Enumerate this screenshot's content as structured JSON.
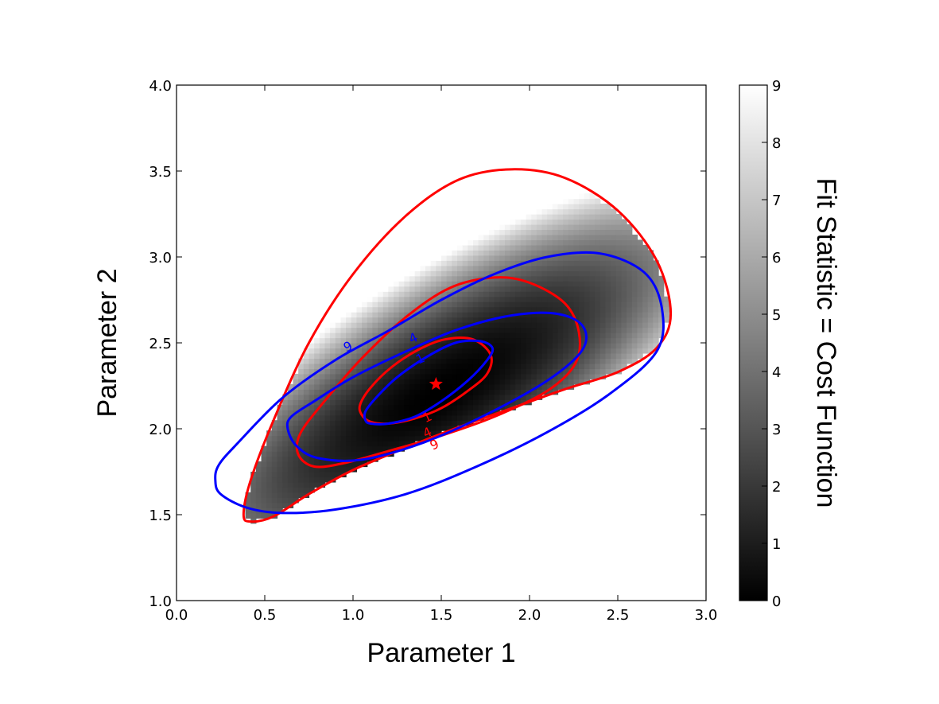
{
  "chart_data": {
    "type": "heatmap",
    "xlabel": "Parameter 1",
    "ylabel": "Parameter 2",
    "xlim": [
      0.0,
      3.0
    ],
    "ylim": [
      1.0,
      4.0
    ],
    "xticks": [
      "0.0",
      "0.5",
      "1.0",
      "1.5",
      "2.0",
      "2.5",
      "3.0"
    ],
    "yticks": [
      "1.0",
      "1.5",
      "2.0",
      "2.5",
      "3.0",
      "3.5",
      "4.0"
    ],
    "colorbar": {
      "label": "Fit Statistic = Cost Function",
      "range": [
        0,
        9
      ],
      "ticks": [
        "0",
        "1",
        "2",
        "3",
        "4",
        "5",
        "6",
        "7",
        "8",
        "9"
      ],
      "colormap": "gray"
    },
    "heatmap": {
      "minimum": {
        "x": 1.5,
        "y": 2.22
      },
      "max_value": 9
    },
    "best_fit": {
      "x": 1.47,
      "y": 2.26,
      "marker": "star",
      "color": "#ff0000"
    },
    "contour_sets": [
      {
        "color": "#ff0000",
        "levels": [
          {
            "label": "1",
            "points": [
              [
                1.05,
                2.08
              ],
              [
                1.1,
                2.04
              ],
              [
                1.2,
                2.03
              ],
              [
                1.35,
                2.06
              ],
              [
                1.5,
                2.12
              ],
              [
                1.65,
                2.22
              ],
              [
                1.76,
                2.32
              ],
              [
                1.78,
                2.43
              ],
              [
                1.68,
                2.52
              ],
              [
                1.52,
                2.52
              ],
              [
                1.37,
                2.46
              ],
              [
                1.22,
                2.36
              ],
              [
                1.1,
                2.24
              ],
              [
                1.04,
                2.14
              ]
            ]
          },
          {
            "label": "4",
            "points": [
              [
                0.69,
                1.85
              ],
              [
                0.78,
                1.78
              ],
              [
                0.95,
                1.8
              ],
              [
                1.2,
                1.87
              ],
              [
                1.5,
                1.96
              ],
              [
                1.8,
                2.07
              ],
              [
                2.1,
                2.22
              ],
              [
                2.26,
                2.38
              ],
              [
                2.28,
                2.56
              ],
              [
                2.2,
                2.73
              ],
              [
                2.0,
                2.85
              ],
              [
                1.8,
                2.88
              ],
              [
                1.55,
                2.82
              ],
              [
                1.3,
                2.65
              ],
              [
                1.05,
                2.41
              ],
              [
                0.83,
                2.15
              ],
              [
                0.7,
                1.97
              ]
            ]
          },
          {
            "label": "9",
            "points": [
              [
                0.38,
                1.5
              ],
              [
                0.42,
                1.46
              ],
              [
                0.55,
                1.49
              ],
              [
                0.75,
                1.62
              ],
              [
                1.0,
                1.76
              ],
              [
                1.3,
                1.89
              ],
              [
                1.6,
                2.01
              ],
              [
                1.9,
                2.12
              ],
              [
                2.2,
                2.23
              ],
              [
                2.5,
                2.33
              ],
              [
                2.72,
                2.47
              ],
              [
                2.8,
                2.67
              ],
              [
                2.72,
                2.98
              ],
              [
                2.5,
                3.27
              ],
              [
                2.2,
                3.46
              ],
              [
                1.9,
                3.51
              ],
              [
                1.6,
                3.45
              ],
              [
                1.3,
                3.24
              ],
              [
                1.0,
                2.9
              ],
              [
                0.75,
                2.5
              ],
              [
                0.55,
                2.05
              ],
              [
                0.42,
                1.7
              ]
            ]
          }
        ]
      },
      {
        "color": "#0000ff",
        "levels": [
          {
            "label": "1",
            "points": [
              [
                1.07,
                2.05
              ],
              [
                1.1,
                2.03
              ],
              [
                1.2,
                2.03
              ],
              [
                1.35,
                2.07
              ],
              [
                1.5,
                2.16
              ],
              [
                1.65,
                2.28
              ],
              [
                1.76,
                2.4
              ],
              [
                1.79,
                2.47
              ],
              [
                1.72,
                2.51
              ],
              [
                1.58,
                2.5
              ],
              [
                1.42,
                2.42
              ],
              [
                1.25,
                2.3
              ],
              [
                1.13,
                2.18
              ],
              [
                1.07,
                2.1
              ]
            ]
          },
          {
            "label": "4",
            "points": [
              [
                0.63,
                2.0
              ],
              [
                0.68,
                1.9
              ],
              [
                0.8,
                1.83
              ],
              [
                1.05,
                1.82
              ],
              [
                1.4,
                1.92
              ],
              [
                1.75,
                2.08
              ],
              [
                2.1,
                2.28
              ],
              [
                2.3,
                2.46
              ],
              [
                2.3,
                2.6
              ],
              [
                2.15,
                2.67
              ],
              [
                1.9,
                2.66
              ],
              [
                1.6,
                2.58
              ],
              [
                1.3,
                2.45
              ],
              [
                1.0,
                2.3
              ],
              [
                0.78,
                2.16
              ],
              [
                0.65,
                2.07
              ]
            ]
          },
          {
            "label": "9",
            "points": [
              [
                0.22,
                1.7
              ],
              [
                0.25,
                1.62
              ],
              [
                0.4,
                1.54
              ],
              [
                0.6,
                1.51
              ],
              [
                0.9,
                1.53
              ],
              [
                1.3,
                1.62
              ],
              [
                1.7,
                1.78
              ],
              [
                2.1,
                1.98
              ],
              [
                2.45,
                2.2
              ],
              [
                2.72,
                2.45
              ],
              [
                2.75,
                2.7
              ],
              [
                2.65,
                2.91
              ],
              [
                2.4,
                3.02
              ],
              [
                2.1,
                3.0
              ],
              [
                1.8,
                2.9
              ],
              [
                1.5,
                2.75
              ],
              [
                1.2,
                2.57
              ],
              [
                0.9,
                2.4
              ],
              [
                0.6,
                2.18
              ],
              [
                0.35,
                1.92
              ],
              [
                0.24,
                1.79
              ]
            ]
          }
        ]
      }
    ],
    "contour_labels": [
      {
        "text": "9",
        "color": "#0000ff",
        "x": 0.97,
        "y": 2.48
      },
      {
        "text": "4",
        "color": "#0000ff",
        "x": 1.34,
        "y": 2.53
      },
      {
        "text": "1",
        "color": "#0000ff",
        "x": 1.38,
        "y": 2.41
      },
      {
        "text": "1",
        "color": "#ff0000",
        "x": 1.42,
        "y": 2.07
      },
      {
        "text": "4",
        "color": "#ff0000",
        "x": 1.42,
        "y": 1.98
      },
      {
        "text": "9",
        "color": "#ff0000",
        "x": 1.46,
        "y": 1.91
      }
    ]
  }
}
